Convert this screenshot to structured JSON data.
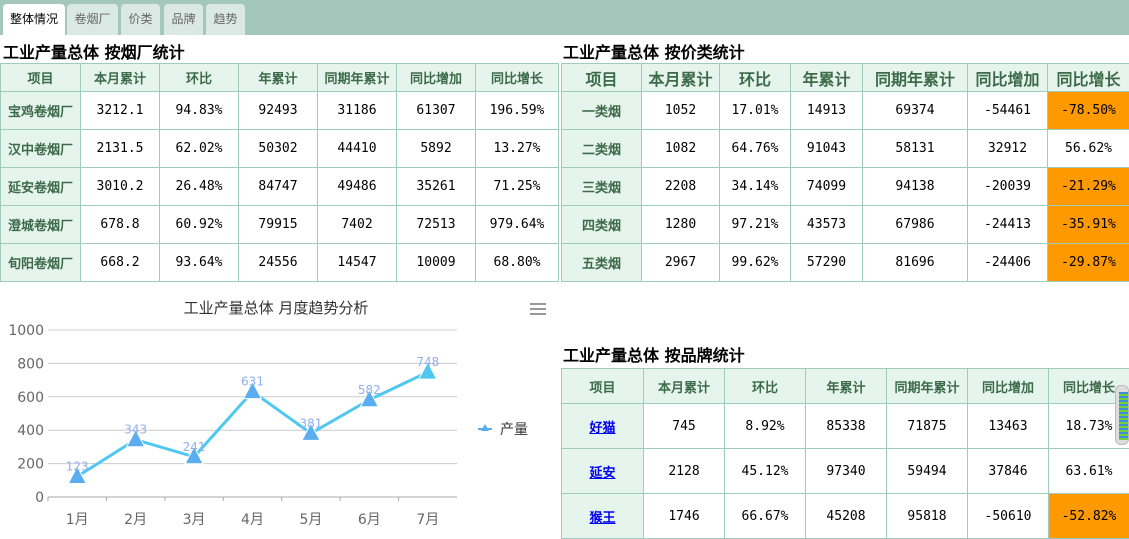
{
  "tabs": [
    "整体情况",
    "卷烟厂",
    "价类",
    "品牌",
    "趋势"
  ],
  "active_tab": 0,
  "factory": {
    "title": "工业产量总体 按烟厂统计",
    "headers": [
      "项目",
      "本月累计",
      "环比",
      "年累计",
      "同期年累计",
      "同比增加",
      "同比增长"
    ],
    "rows": [
      [
        "宝鸡卷烟厂",
        "3212.1",
        "94.83%",
        "92493",
        "31186",
        "61307",
        "196.59%"
      ],
      [
        "汉中卷烟厂",
        "2131.5",
        "62.02%",
        "50302",
        "44410",
        "5892",
        "13.27%"
      ],
      [
        "延安卷烟厂",
        "3010.2",
        "26.48%",
        "84747",
        "49486",
        "35261",
        "71.25%"
      ],
      [
        "澄城卷烟厂",
        "678.8",
        "60.92%",
        "79915",
        "7402",
        "72513",
        "979.64%"
      ],
      [
        "旬阳卷烟厂",
        "668.2",
        "93.64%",
        "24556",
        "14547",
        "10009",
        "68.80%"
      ]
    ]
  },
  "price": {
    "title": "工业产量总体 按价类统计",
    "headers": [
      "项目",
      "本月累计",
      "环比",
      "年累计",
      "同期年累计",
      "同比增加",
      "同比增长"
    ],
    "rows": [
      [
        "一类烟",
        "1052",
        "17.01%",
        "14913",
        "69374",
        "-54461",
        "-78.50%"
      ],
      [
        "二类烟",
        "1082",
        "64.76%",
        "91043",
        "58131",
        "32912",
        "56.62%"
      ],
      [
        "三类烟",
        "2208",
        "34.14%",
        "74099",
        "94138",
        "-20039",
        "-21.29%"
      ],
      [
        "四类烟",
        "1280",
        "97.21%",
        "43573",
        "67986",
        "-24413",
        "-35.91%"
      ],
      [
        "五类烟",
        "2967",
        "99.62%",
        "57290",
        "81696",
        "-24406",
        "-29.87%"
      ]
    ]
  },
  "brand": {
    "title": "工业产量总体 按品牌统计",
    "headers": [
      "项目",
      "本月累计",
      "环比",
      "年累计",
      "同期年累计",
      "同比增加",
      "同比增长"
    ],
    "rows": [
      [
        "好猫",
        "745",
        "8.92%",
        "85338",
        "71875",
        "13463",
        "18.73%"
      ],
      [
        "延安",
        "2128",
        "45.12%",
        "97340",
        "59494",
        "37846",
        "63.61%"
      ],
      [
        "猴王",
        "1746",
        "66.67%",
        "45208",
        "95818",
        "-50610",
        "-52.82%"
      ]
    ]
  },
  "colors": {
    "negative_highlight": "#ff9900",
    "line": "#4fc8f0",
    "marker": "#5aaef0",
    "label": "#8fb0f0",
    "header_bg": "#e6f4ee",
    "tabbar": "#a3c8bb"
  },
  "chart_data": {
    "type": "line",
    "title": "工业产量总体 月度趋势分析",
    "categories": [
      "1月",
      "2月",
      "3月",
      "4月",
      "5月",
      "6月",
      "7月"
    ],
    "series": [
      {
        "name": "产量",
        "values": [
          123,
          343,
          241,
          631,
          381,
          582,
          748
        ]
      }
    ],
    "yticks": [
      0,
      200,
      400,
      600,
      800,
      1000
    ],
    "ylim": [
      0,
      1000
    ],
    "grid": true,
    "legend": "right",
    "marker": "triangle",
    "menu_icon": "hamburger-menu-icon"
  }
}
